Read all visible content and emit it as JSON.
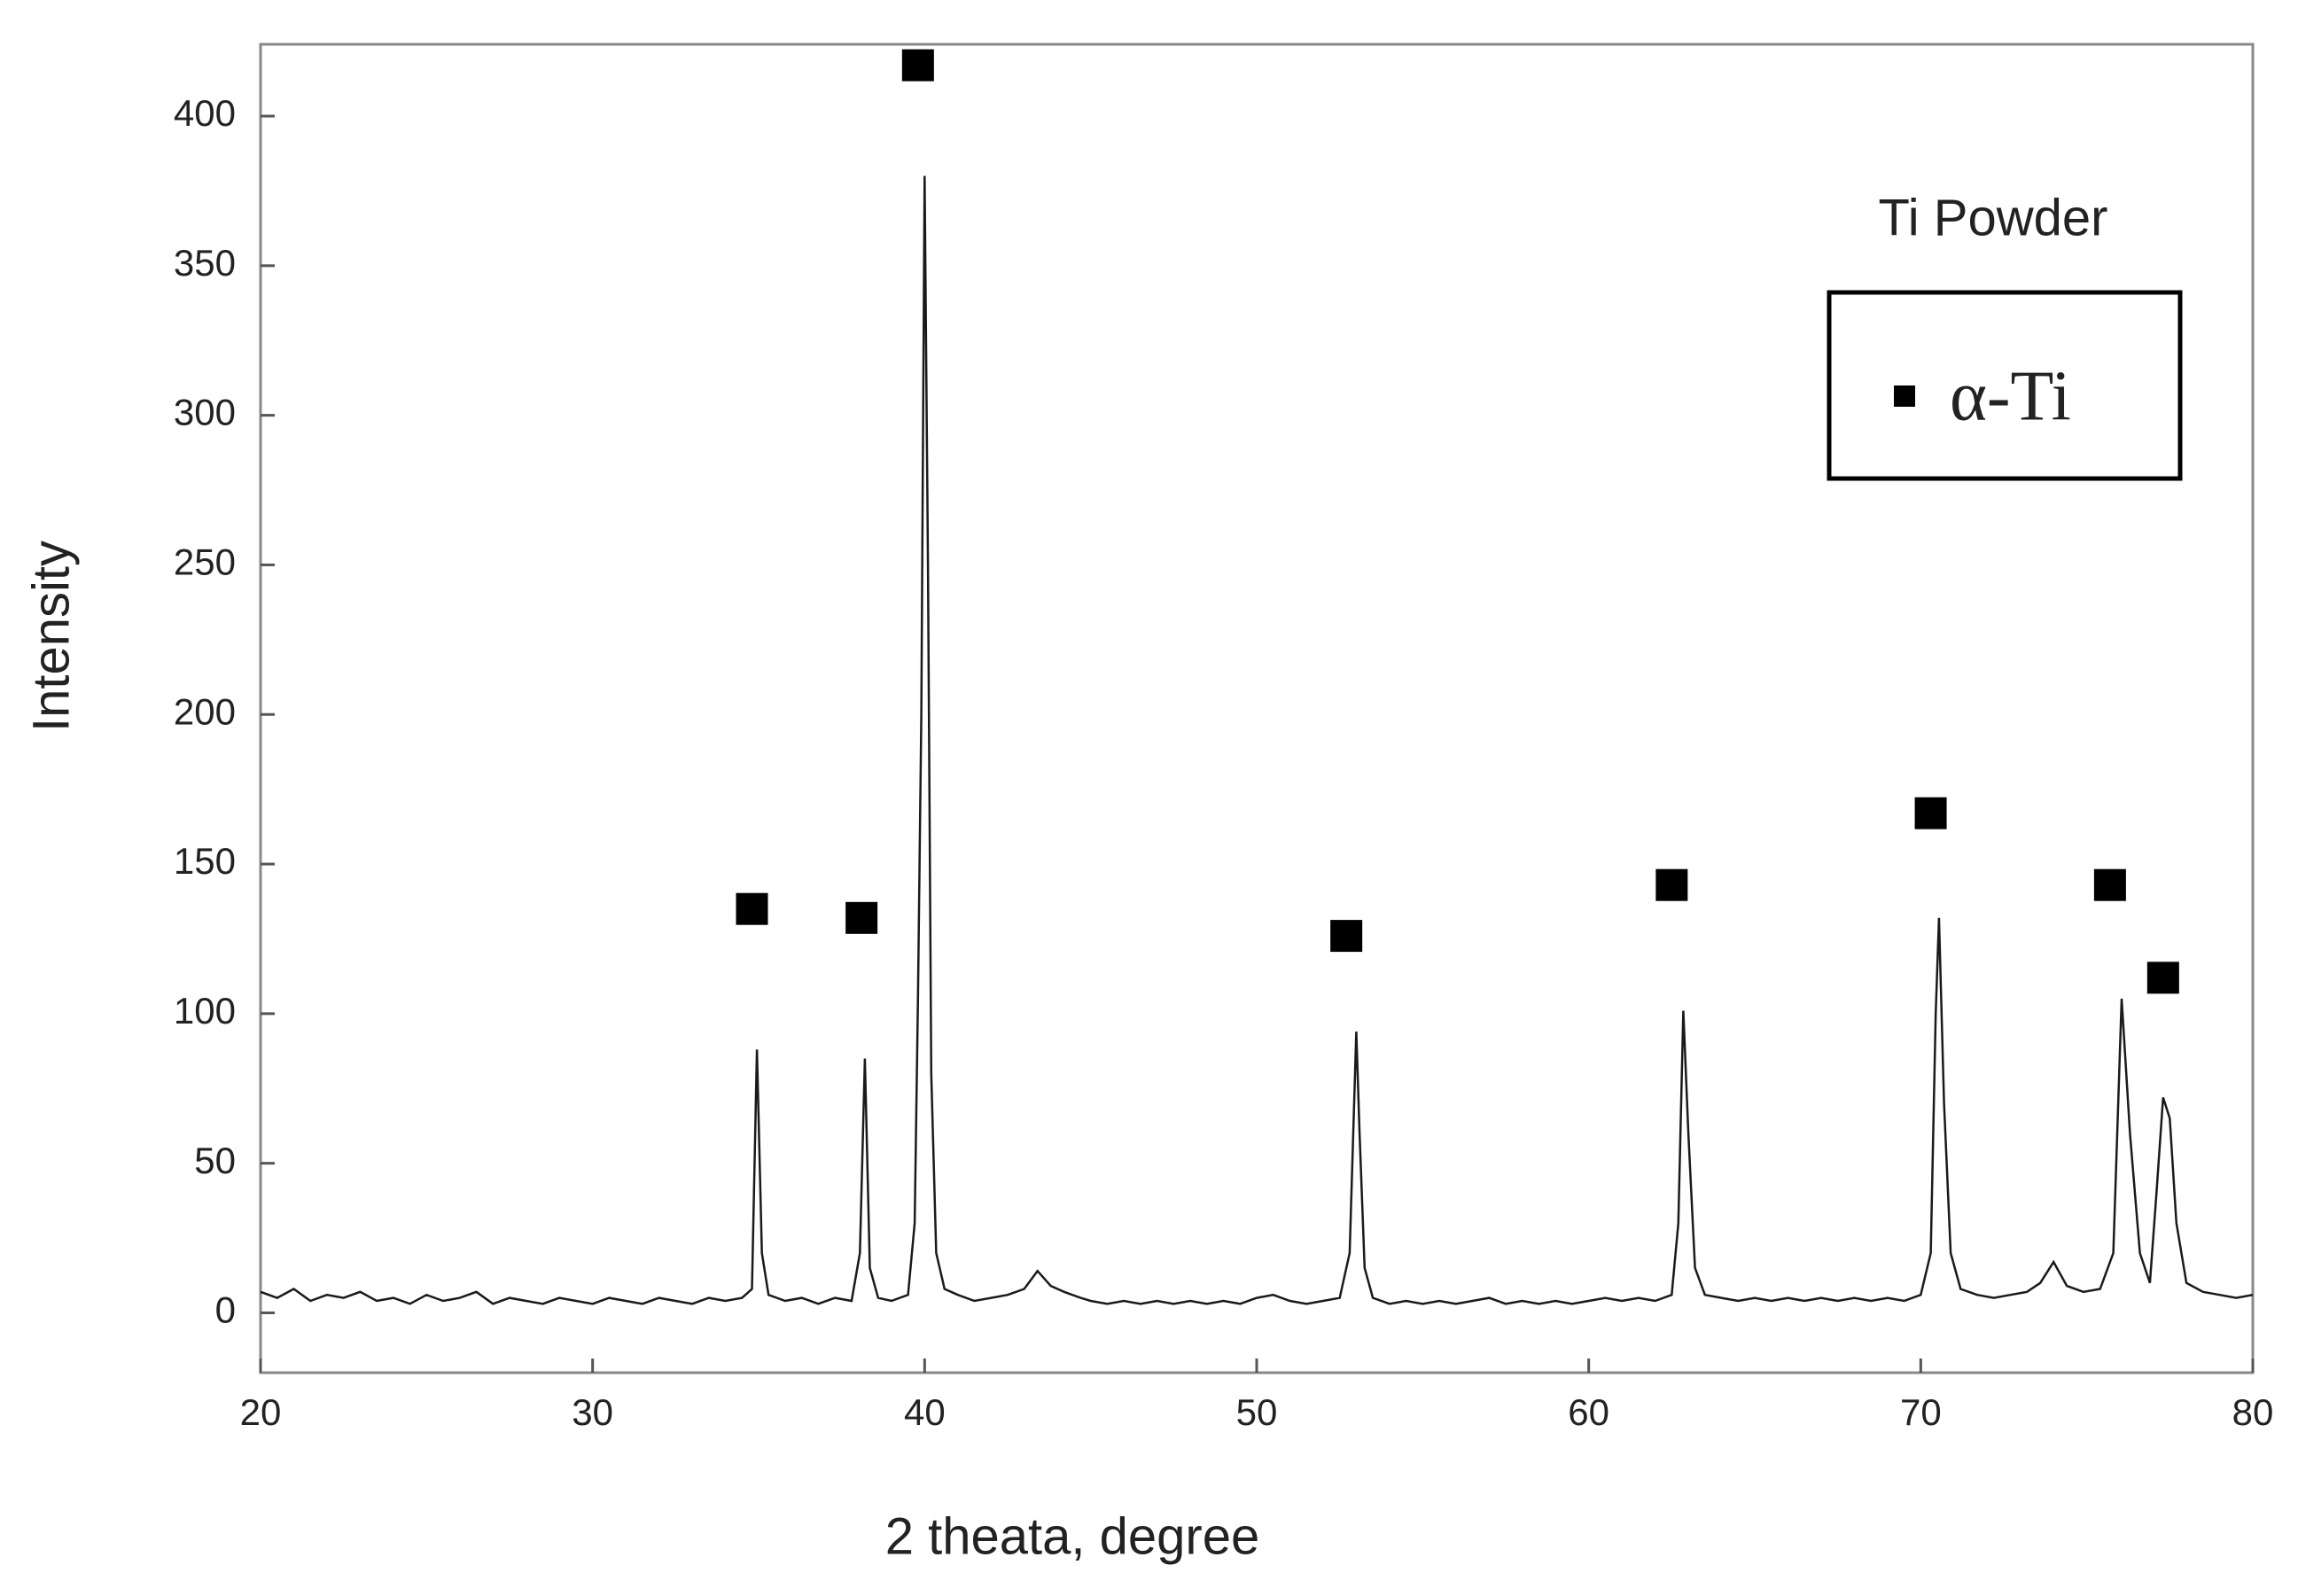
{
  "chart_data": {
    "type": "line",
    "x_label": "2 theata, degree",
    "y_label": "Intensity",
    "annotation": "Ti Powder",
    "xlim": [
      20,
      80
    ],
    "xticks": [
      20,
      30,
      40,
      50,
      60,
      70,
      80
    ],
    "ylim": [
      -20,
      424
    ],
    "yticks": [
      0,
      50,
      100,
      150,
      200,
      250,
      300,
      350,
      400
    ],
    "series": [
      {
        "color": "#1a1a1a",
        "x": [
          20,
          20.5,
          21,
          21.5,
          22,
          22.5,
          23,
          23.5,
          24,
          24.5,
          25,
          25.5,
          26,
          26.5,
          27,
          27.5,
          28,
          28.5,
          29,
          29.5,
          30,
          30.5,
          31,
          31.5,
          32,
          32.5,
          33,
          33.5,
          34,
          34.5,
          34.8,
          34.95,
          35.1,
          35.3,
          35.8,
          36.3,
          36.8,
          37.3,
          37.8,
          38.05,
          38.2,
          38.35,
          38.6,
          39,
          39.5,
          39.7,
          39.8,
          39.9,
          40,
          40.1,
          40.2,
          40.35,
          40.6,
          41,
          41.5,
          42,
          42.5,
          43,
          43.4,
          43.8,
          44.2,
          44.7,
          45,
          45.5,
          46,
          46.5,
          47,
          47.5,
          48,
          48.5,
          49,
          49.5,
          50,
          50.5,
          51,
          51.5,
          52,
          52.5,
          52.8,
          53,
          53.1,
          53.25,
          53.5,
          54,
          54.5,
          55,
          55.5,
          56,
          56.5,
          57,
          57.5,
          58,
          58.5,
          59,
          59.5,
          60,
          60.5,
          61,
          61.5,
          62,
          62.5,
          62.7,
          62.85,
          63,
          63.2,
          63.5,
          64,
          64.5,
          65,
          65.5,
          66,
          66.5,
          67,
          67.5,
          68,
          68.5,
          69,
          69.5,
          70,
          70.3,
          70.45,
          70.55,
          70.7,
          70.9,
          71.2,
          71.7,
          72.2,
          72.7,
          73.2,
          73.6,
          74,
          74.4,
          74.9,
          75.4,
          75.8,
          76.05,
          76.3,
          76.6,
          76.9,
          77.1,
          77.3,
          77.5,
          77.7,
          78,
          78.5,
          79,
          79.5,
          80
        ],
        "values": [
          7,
          5,
          8,
          4,
          6,
          5,
          7,
          4,
          5,
          3,
          6,
          4,
          5,
          7,
          3,
          5,
          4,
          3,
          5,
          4,
          3,
          5,
          4,
          3,
          5,
          4,
          3,
          5,
          4,
          5,
          8,
          88,
          20,
          6,
          4,
          5,
          3,
          5,
          4,
          20,
          85,
          15,
          5,
          4,
          6,
          30,
          105,
          200,
          380,
          250,
          80,
          20,
          8,
          6,
          4,
          5,
          6,
          8,
          14,
          9,
          7,
          5,
          4,
          3,
          4,
          3,
          4,
          3,
          4,
          3,
          4,
          3,
          5,
          6,
          4,
          3,
          4,
          5,
          20,
          94,
          60,
          15,
          5,
          3,
          4,
          3,
          4,
          3,
          4,
          5,
          3,
          4,
          3,
          4,
          3,
          4,
          5,
          4,
          5,
          4,
          6,
          30,
          101,
          60,
          15,
          6,
          5,
          4,
          5,
          4,
          5,
          4,
          5,
          4,
          5,
          4,
          5,
          4,
          6,
          20,
          100,
          132,
          70,
          20,
          8,
          6,
          5,
          6,
          7,
          10,
          17,
          9,
          7,
          8,
          20,
          105,
          60,
          20,
          10,
          40,
          72,
          65,
          30,
          10,
          7,
          6,
          5,
          6
        ]
      },
      {
        "name": "α-Ti",
        "type": "scatter",
        "color": "#000000",
        "x": [
          34.8,
          38.1,
          39.8,
          52.7,
          62.5,
          70.3,
          75.7,
          77.3
        ],
        "values": [
          135,
          132,
          417,
          126,
          143,
          167,
          143,
          112
        ]
      }
    ]
  }
}
